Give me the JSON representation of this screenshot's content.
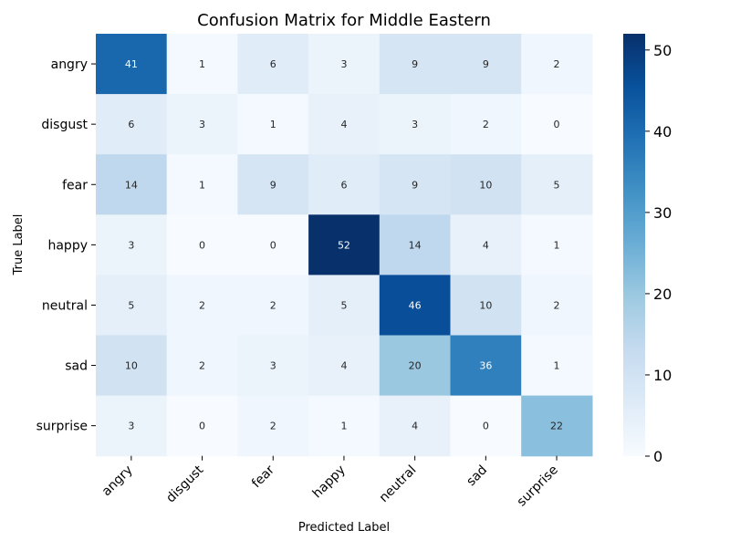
{
  "chart_data": {
    "type": "heatmap",
    "title": "Confusion Matrix for Middle Eastern",
    "xlabel": "Predicted Label",
    "ylabel": "True Label",
    "x_categories": [
      "angry",
      "disgust",
      "fear",
      "happy",
      "neutral",
      "sad",
      "surprise"
    ],
    "y_categories": [
      "angry",
      "disgust",
      "fear",
      "happy",
      "neutral",
      "sad",
      "surprise"
    ],
    "values": [
      [
        41,
        1,
        6,
        3,
        9,
        9,
        2
      ],
      [
        6,
        3,
        1,
        4,
        3,
        2,
        0
      ],
      [
        14,
        1,
        9,
        6,
        9,
        10,
        5
      ],
      [
        3,
        0,
        0,
        52,
        14,
        4,
        1
      ],
      [
        5,
        2,
        2,
        5,
        46,
        10,
        2
      ],
      [
        10,
        2,
        3,
        4,
        20,
        36,
        1
      ],
      [
        3,
        0,
        2,
        1,
        4,
        0,
        22
      ]
    ],
    "colorbar": {
      "min": 0,
      "max": 52,
      "ticks": [
        0,
        10,
        20,
        30,
        40,
        50
      ],
      "colormap": "Blues"
    },
    "grid": false,
    "legend": "colorbar-right"
  }
}
